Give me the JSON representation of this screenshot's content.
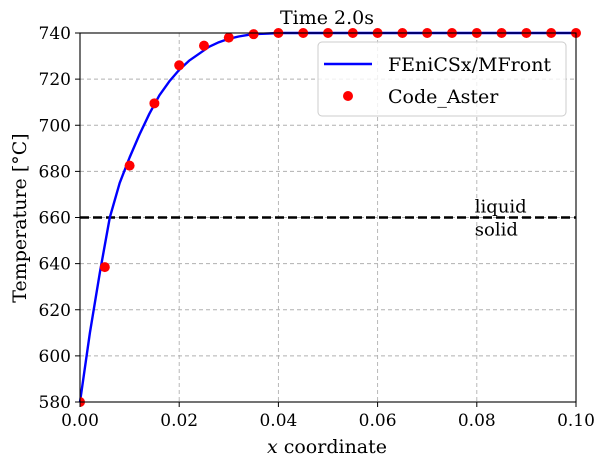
{
  "chart_data": {
    "type": "line",
    "title": "Time 2.0s",
    "xlabel": "x coordinate",
    "xlabel_italic_part": "x",
    "xlabel_rest": " coordinate",
    "ylabel": "Temperature [°C]",
    "xlim": [
      0.0,
      0.1
    ],
    "ylim": [
      580,
      740
    ],
    "x_ticks": [
      0.0,
      0.02,
      0.04,
      0.06,
      0.08,
      0.1
    ],
    "x_tick_labels": [
      "0.00",
      "0.02",
      "0.04",
      "0.06",
      "0.08",
      "0.10"
    ],
    "y_ticks": [
      580,
      600,
      620,
      640,
      660,
      680,
      700,
      720,
      740
    ],
    "y_tick_labels": [
      "580",
      "600",
      "620",
      "640",
      "660",
      "680",
      "700",
      "720",
      "740"
    ],
    "grid": true,
    "legend_position": "top-right",
    "series": [
      {
        "name": "FEniCSx/MFront",
        "style": "line",
        "color": "#0000ff",
        "x": [
          0.0,
          0.002,
          0.004,
          0.006,
          0.008,
          0.01,
          0.012,
          0.014,
          0.016,
          0.018,
          0.02,
          0.022,
          0.024,
          0.026,
          0.028,
          0.03,
          0.032,
          0.034,
          0.036,
          0.038,
          0.04,
          0.045,
          0.05,
          0.06,
          0.07,
          0.08,
          0.09,
          0.1
        ],
        "y": [
          580,
          610,
          636,
          660,
          675,
          686,
          696,
          705,
          713,
          719,
          724,
          728,
          731,
          734,
          736,
          737.5,
          738.5,
          739.2,
          739.6,
          739.8,
          740,
          740,
          740,
          740,
          740,
          740,
          740,
          740
        ]
      },
      {
        "name": "Code_Aster",
        "style": "markers",
        "color": "#ff0000",
        "x": [
          0.0,
          0.005,
          0.01,
          0.015,
          0.02,
          0.025,
          0.03,
          0.035,
          0.04,
          0.045,
          0.05,
          0.055,
          0.06,
          0.065,
          0.07,
          0.075,
          0.08,
          0.085,
          0.09,
          0.095,
          0.1
        ],
        "y": [
          580,
          638.5,
          682.5,
          709.5,
          726,
          734.5,
          738,
          739.5,
          740,
          740,
          740,
          740,
          740,
          740,
          740,
          740,
          740,
          740,
          740,
          740,
          740
        ]
      }
    ],
    "reference_line": {
      "y": 660,
      "style": "dashed",
      "color": "#000000"
    },
    "annotations": [
      {
        "text": "liquid",
        "x": 0.08,
        "y": 660,
        "side": "above"
      },
      {
        "text": "solid",
        "x": 0.08,
        "y": 660,
        "side": "below"
      }
    ]
  }
}
